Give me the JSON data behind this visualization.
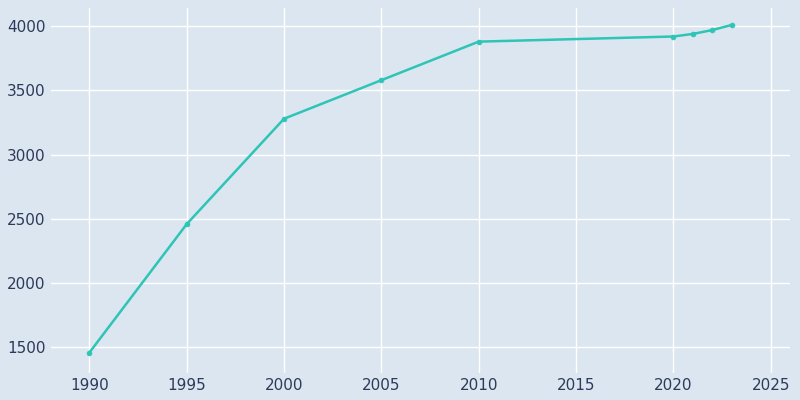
{
  "years": [
    1990,
    1995,
    2000,
    2005,
    2010,
    2020,
    2021,
    2022,
    2023
  ],
  "population": [
    1460,
    2460,
    3280,
    3580,
    3880,
    3920,
    3940,
    3970,
    4010
  ],
  "line_color": "#2ec4b6",
  "marker": "o",
  "marker_size": 3.5,
  "bg_color": "#dce6f0",
  "grid_color": "#ffffff",
  "xlim": [
    1988,
    2026
  ],
  "ylim": [
    1300,
    4150
  ],
  "xticks": [
    1990,
    1995,
    2000,
    2005,
    2010,
    2015,
    2020,
    2025
  ],
  "yticks": [
    1500,
    2000,
    2500,
    3000,
    3500,
    4000
  ],
  "tick_label_color": "#2d3a5a",
  "tick_label_size": 11,
  "spine_color": "#dce6f0",
  "linewidth": 1.8
}
